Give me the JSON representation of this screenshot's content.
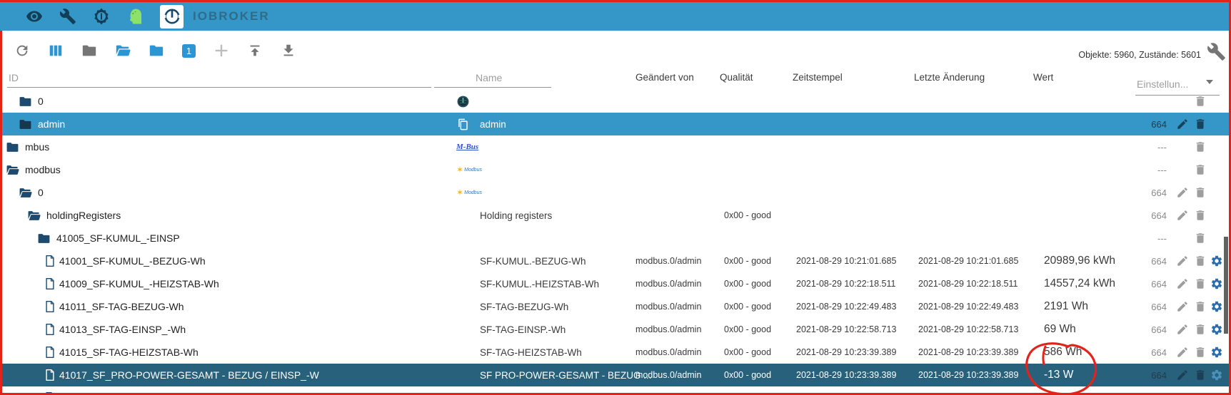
{
  "app_bar": {
    "title": "IOBROKER",
    "icons": [
      "eye-icon",
      "wrench-icon",
      "brightness-icon",
      "user-head-icon",
      "iobroker-logo"
    ]
  },
  "toolbar": {
    "depth_label": "1",
    "stats_label": "Objekte: 5960, Zustände: 5601",
    "buttons": [
      "refresh",
      "view-columns",
      "collapse-folders",
      "expand-folders",
      "expand-folder-blue",
      "depth-1",
      "add-object",
      "upload",
      "download",
      "settings-wrench"
    ]
  },
  "logos": {
    "mbus": "M-Bus",
    "modbus": "Modbus"
  },
  "table": {
    "headers": {
      "id_placeholder": "ID",
      "name_placeholder": "Name",
      "changed_by": "Geändert von",
      "quality": "Qualität",
      "timestamp": "Zeitstempel",
      "last_change": "Letzte Änderung",
      "value": "Wert",
      "settings": "Einstellun..."
    },
    "rows": [
      {
        "id": "0",
        "level": 1,
        "icon": "folder-closed",
        "name_icon": "admin-adapter-icon",
        "name": "",
        "changed_by": "",
        "quality": "",
        "timestamp": "",
        "last_change": "",
        "value": "",
        "acl": "",
        "actions": [
          "delete"
        ],
        "selected": null,
        "clip": "top"
      },
      {
        "id": "admin",
        "level": 1,
        "icon": "folder-closed",
        "name_icon": "copy-icon",
        "name": "admin",
        "changed_by": "",
        "quality": "",
        "timestamp": "",
        "last_change": "",
        "value": "",
        "acl": "664",
        "actions": [
          "edit",
          "delete"
        ],
        "selected": "light",
        "clip": null
      },
      {
        "id": "mbus",
        "level": 0,
        "icon": "folder-closed",
        "name_icon": "mbus-logo",
        "name": "",
        "changed_by": "",
        "quality": "",
        "timestamp": "",
        "last_change": "",
        "value": "",
        "acl": "---",
        "actions": [
          "delete"
        ],
        "selected": null,
        "clip": null
      },
      {
        "id": "modbus",
        "level": 0,
        "icon": "folder-open",
        "name_icon": "modbus-logo",
        "name": "",
        "changed_by": "",
        "quality": "",
        "timestamp": "",
        "last_change": "",
        "value": "",
        "acl": "---",
        "actions": [
          "delete"
        ],
        "selected": null,
        "clip": null
      },
      {
        "id": "0",
        "level": 1,
        "icon": "folder-open",
        "name_icon": "modbus-logo",
        "name": "",
        "changed_by": "",
        "quality": "",
        "timestamp": "",
        "last_change": "",
        "value": "",
        "acl": "664",
        "actions": [
          "edit",
          "delete"
        ],
        "selected": null,
        "clip": null
      },
      {
        "id": "holdingRegisters",
        "level": 2,
        "icon": "folder-open",
        "name_icon": null,
        "name": "Holding registers",
        "changed_by": "",
        "quality": "0x00 - good",
        "timestamp": "",
        "last_change": "",
        "value": "",
        "acl": "664",
        "actions": [
          "edit",
          "delete"
        ],
        "selected": null,
        "clip": null
      },
      {
        "id": "41005_SF-KUMUL_-EINSP",
        "level": 3,
        "icon": "folder-closed",
        "name_icon": null,
        "name": "",
        "changed_by": "",
        "quality": "",
        "timestamp": "",
        "last_change": "",
        "value": "",
        "acl": "---",
        "actions": [
          "delete"
        ],
        "selected": null,
        "clip": null
      },
      {
        "id": "41001_SF-KUMUL_-BEZUG-Wh",
        "level": 3.5,
        "icon": "document",
        "name_icon": null,
        "name": "SF-KUMUL.-BEZUG-Wh",
        "changed_by": "modbus.0/admin",
        "quality": "0x00 - good",
        "timestamp": "2021-08-29 10:21:01.685",
        "last_change": "2021-08-29 10:21:01.685",
        "value": "20989,96 kWh",
        "acl": "664",
        "actions": [
          "edit",
          "delete",
          "settings"
        ],
        "selected": null,
        "clip": null
      },
      {
        "id": "41009_SF-KUMUL_-HEIZSTAB-Wh",
        "level": 3.5,
        "icon": "document",
        "name_icon": null,
        "name": "SF-KUMUL.-HEIZSTAB-Wh",
        "changed_by": "modbus.0/admin",
        "quality": "0x00 - good",
        "timestamp": "2021-08-29 10:22:18.511",
        "last_change": "2021-08-29 10:22:18.511",
        "value": "14557,24 kWh",
        "acl": "664",
        "actions": [
          "edit",
          "delete",
          "settings"
        ],
        "selected": null,
        "clip": null
      },
      {
        "id": "41011_SF-TAG-BEZUG-Wh",
        "level": 3.5,
        "icon": "document",
        "name_icon": null,
        "name": "SF-TAG-BEZUG-Wh",
        "changed_by": "modbus.0/admin",
        "quality": "0x00 - good",
        "timestamp": "2021-08-29 10:22:49.483",
        "last_change": "2021-08-29 10:22:49.483",
        "value": "2191 Wh",
        "acl": "664",
        "actions": [
          "edit",
          "delete",
          "settings"
        ],
        "selected": null,
        "clip": null
      },
      {
        "id": "41013_SF-TAG-EINSP_-Wh",
        "level": 3.5,
        "icon": "document",
        "name_icon": null,
        "name": "SF-TAG-EINSP.-Wh",
        "changed_by": "modbus.0/admin",
        "quality": "0x00 - good",
        "timestamp": "2021-08-29 10:22:58.713",
        "last_change": "2021-08-29 10:22:58.713",
        "value": "69 Wh",
        "acl": "664",
        "actions": [
          "edit",
          "delete",
          "settings"
        ],
        "selected": null,
        "clip": null
      },
      {
        "id": "41015_SF-TAG-HEIZSTAB-Wh",
        "level": 3.5,
        "icon": "document",
        "name_icon": null,
        "name": "SF-TAG-HEIZSTAB-Wh",
        "changed_by": "modbus.0/admin",
        "quality": "0x00 - good",
        "timestamp": "2021-08-29 10:23:39.389",
        "last_change": "2021-08-29 10:23:39.389",
        "value": "586 Wh",
        "acl": "664",
        "actions": [
          "edit",
          "delete",
          "settings"
        ],
        "selected": null,
        "clip": null
      },
      {
        "id": "41017_SF_PRO-POWER-GESAMT - BEZUG / EINSP_-W",
        "level": 3.5,
        "icon": "document",
        "name_icon": null,
        "name": "SF PRO-POWER-GESAMT - BEZUG ...",
        "changed_by": "modbus.0/admin",
        "quality": "0x00 - good",
        "timestamp": "2021-08-29 10:23:39.389",
        "last_change": "2021-08-29 10:23:39.389",
        "value": "-13 W",
        "acl": "664",
        "actions": [
          "edit",
          "delete",
          "settings"
        ],
        "selected": "dark",
        "clip": null
      },
      {
        "id": "",
        "level": 3.5,
        "icon": "document",
        "name_icon": null,
        "name": "",
        "changed_by": "",
        "quality": "",
        "timestamp": "",
        "last_change": "",
        "value": "",
        "acl": "",
        "actions": [],
        "selected": null,
        "clip": "bottom"
      }
    ]
  },
  "colors": {
    "app_bar_bg": "#3596c8",
    "selection_light": "#3596c8",
    "selection_dark": "#27617c",
    "folder": "#1d4a6e",
    "gear_blue": "#2a6da8",
    "annotation_red": "#e2231a"
  },
  "annotation": {
    "type": "hand-drawn-circle",
    "around_value": "-13 W",
    "frame": "red border around whole screen"
  }
}
